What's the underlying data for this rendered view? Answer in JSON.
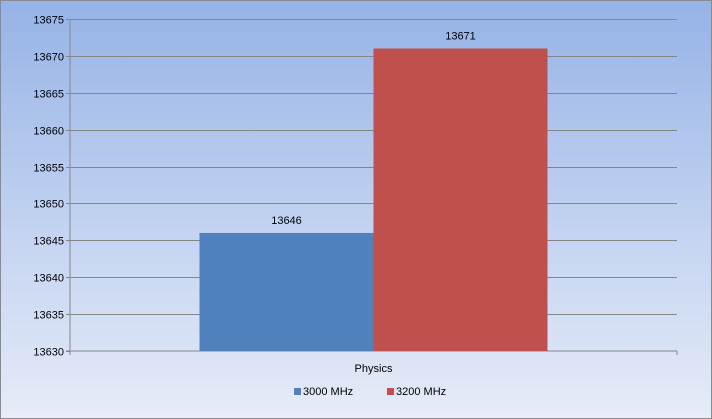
{
  "chart_data": {
    "type": "bar",
    "categories": [
      "Physics"
    ],
    "series": [
      {
        "name": "3000 MHz",
        "values": [
          13646
        ],
        "color": "#4f81bd"
      },
      {
        "name": "3200 MHz",
        "values": [
          13671
        ],
        "color": "#c0504d"
      }
    ],
    "data_labels": [
      "13646",
      "13671"
    ],
    "title": "",
    "xlabel": "",
    "ylabel": "",
    "ylim": [
      13630,
      13675
    ],
    "ytick_step": 5,
    "yticks": [
      "13675",
      "13670",
      "13665",
      "13660",
      "13655",
      "13650",
      "13645",
      "13640",
      "13635",
      "13630"
    ],
    "grid": true,
    "legend_position": "bottom"
  }
}
